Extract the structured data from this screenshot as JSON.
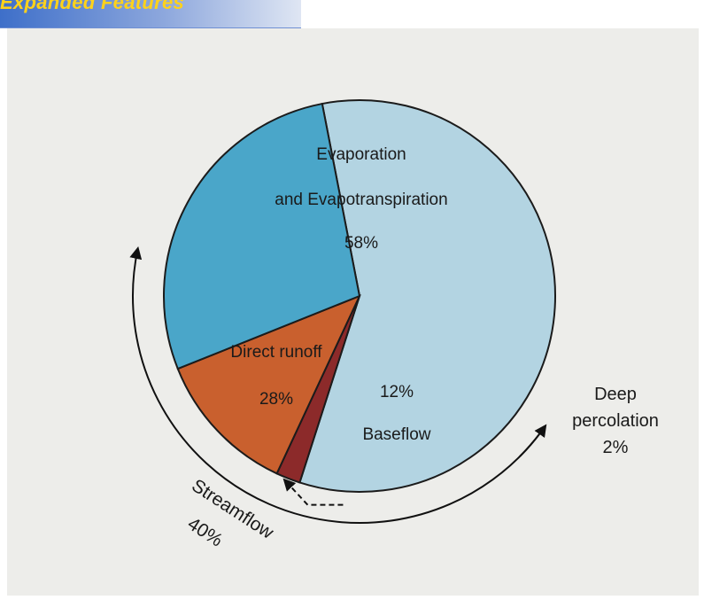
{
  "header": {
    "title": "Expanded Features"
  },
  "chart_data": {
    "type": "pie",
    "title": "",
    "slices": [
      {
        "name": "Evaporation and Evapotranspiration",
        "label_lines": [
          "Evaporation",
          "and Evapotranspiration",
          "58%"
        ],
        "value": 58,
        "color": "#b3d4e2"
      },
      {
        "name": "Deep percolation",
        "label_lines": [
          "Deep",
          "percolation",
          "2%"
        ],
        "value": 2,
        "color": "#8c2a2a"
      },
      {
        "name": "Baseflow",
        "label_lines": [
          "12%",
          "Baseflow"
        ],
        "value": 12,
        "color": "#c9602e"
      },
      {
        "name": "Direct runoff",
        "label_lines": [
          "Direct runoff",
          "28%"
        ],
        "value": 28,
        "color": "#4aa6c9"
      }
    ],
    "annotations": [
      {
        "name": "Streamflow",
        "label_lines": [
          "Streamflow",
          "40%"
        ],
        "value": 40,
        "spans": [
          "Direct runoff",
          "Baseflow"
        ]
      }
    ]
  }
}
